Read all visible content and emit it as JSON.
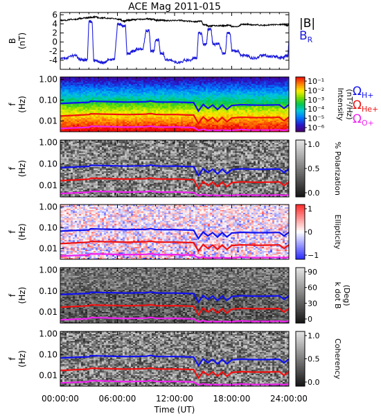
{
  "title": "ACE Mag 2011-015",
  "xlabel": "Time (UT)",
  "xticks": [
    "00:00:00",
    "06:00:00",
    "12:00:00",
    "18:00:00",
    "24:00:00"
  ],
  "xtick_hours": [
    0,
    6,
    12,
    18,
    24
  ],
  "xlim_hours": [
    0,
    24
  ],
  "colors": {
    "black": "#000000",
    "br": "#1a1adc",
    "h_plus": "#1010f0",
    "he_plus": "#f01010",
    "o_plus": "#f020f0"
  },
  "legend": {
    "b_mag": "|B|",
    "b_r": "B",
    "b_r_sub": "R",
    "omega": "Ω",
    "h_plus": "H+",
    "he_plus": "He+",
    "o_plus": "O+"
  },
  "chart_data": [
    {
      "type": "line",
      "panel": "field",
      "ylabel": "B",
      "yunit": "(nT)",
      "ylim": [
        -6,
        6.5
      ],
      "yticks": [
        "6",
        "4",
        "2",
        "0",
        "-2",
        "-4"
      ],
      "ytick_values": [
        6,
        4,
        2,
        0,
        -2,
        -4
      ],
      "x_hours": [
        0,
        1,
        2,
        2.5,
        3,
        3.5,
        4,
        5,
        6,
        6.5,
        7,
        7.5,
        8,
        9,
        9.5,
        10,
        10.5,
        11,
        12,
        13,
        14,
        14.5,
        15,
        15.5,
        16,
        17,
        17.5,
        18,
        19,
        20,
        21,
        22,
        23,
        23.7,
        24
      ],
      "series": [
        {
          "name": "|B|",
          "values": [
            4.8,
            5.0,
            5.2,
            5.3,
            5.4,
            5.5,
            5.3,
            5.2,
            5.0,
            4.6,
            4.8,
            4.9,
            5.0,
            5.1,
            5.0,
            4.8,
            4.8,
            4.7,
            4.8,
            4.6,
            4.5,
            4.6,
            3.8,
            3.5,
            3.6,
            3.6,
            3.7,
            3.4,
            3.9,
            3.8,
            3.7,
            3.8,
            3.9,
            3.7,
            4.0
          ]
        },
        {
          "name": "B_R",
          "values": [
            -3.5,
            -3.0,
            -3.8,
            -3.9,
            4.5,
            -4.0,
            -4.5,
            -3.8,
            3.9,
            3.5,
            -2.5,
            -2.0,
            -1.5,
            2.5,
            -2.0,
            0.5,
            -2.5,
            -4.0,
            -4.5,
            -4.0,
            -3.5,
            2.0,
            -0.5,
            2.8,
            -0.5,
            -2.5,
            2.0,
            -2.0,
            -3.0,
            -3.5,
            -3.0,
            -3.2,
            -3.5,
            -3.0,
            0.5
          ]
        }
      ]
    },
    {
      "type": "heatmap",
      "panel": "spectrogram",
      "ylabel": "f",
      "yunit": "(Hz)",
      "yscale": "log",
      "ylim": [
        0.003,
        1.3
      ],
      "yticks": [
        "1.00",
        "0.10",
        "0.01"
      ],
      "ytick_values": [
        1,
        0.1,
        0.01
      ],
      "colorbar_label": "Intensity",
      "colorbar_unit": "(nT²/Hz)",
      "colorbar_ticks": [
        "10⁻¹",
        "10⁻²",
        "10⁻³",
        "10⁻⁴",
        "10⁻⁵",
        "10⁻⁶"
      ],
      "colorscale": "rainbow",
      "zlim": [
        -6.5,
        -0.5
      ]
    },
    {
      "type": "heatmap",
      "panel": "polarization",
      "ylabel": "f",
      "yunit": "(Hz)",
      "yscale": "log",
      "ylim": [
        0.003,
        1.3
      ],
      "yticks": [
        "1.00",
        "0.10",
        "0.01"
      ],
      "ytick_values": [
        1,
        0.1,
        0.01
      ],
      "colorbar_label": "% Polarization",
      "colorbar_ticks": [
        "1.0",
        "0.5",
        "0.0"
      ],
      "colorscale": "gray",
      "zlim": [
        0,
        1
      ]
    },
    {
      "type": "heatmap",
      "panel": "ellipticity",
      "ylabel": "f",
      "yunit": "(Hz)",
      "yscale": "log",
      "ylim": [
        0.003,
        1.3
      ],
      "yticks": [
        "1.00",
        "0.10",
        "0.01"
      ],
      "ytick_values": [
        1,
        0.1,
        0.01
      ],
      "colorbar_label": "Ellipticity",
      "colorbar_ticks": [
        "1",
        "0",
        "−1"
      ],
      "colorscale": "blue-white-red",
      "zlim": [
        -1,
        1
      ]
    },
    {
      "type": "heatmap",
      "panel": "kdotb",
      "ylabel": "f",
      "yunit": "(Hz)",
      "yscale": "log",
      "ylim": [
        0.003,
        1.3
      ],
      "yticks": [
        "1.00",
        "0.10",
        "0.01"
      ],
      "ytick_values": [
        1,
        0.1,
        0.01
      ],
      "colorbar_label": "k dot B",
      "colorbar_unit": "(Deg)",
      "colorbar_ticks": [
        "90",
        "60",
        "30",
        "0"
      ],
      "colorscale": "gray",
      "zlim": [
        0,
        90
      ]
    },
    {
      "type": "heatmap",
      "panel": "coherency",
      "ylabel": "f",
      "yunit": "(Hz)",
      "yscale": "log",
      "ylim": [
        0.003,
        1.3
      ],
      "yticks": [
        "1.00",
        "0.10",
        "0.01"
      ],
      "ytick_values": [
        1,
        0.1,
        0.01
      ],
      "colorbar_label": "Coherency",
      "colorbar_ticks": [
        "1.0",
        "0.5",
        "0.0"
      ],
      "colorscale": "gray",
      "zlim": [
        0,
        1
      ]
    }
  ],
  "gyrofrequency_lines": {
    "x_hours": [
      0,
      1,
      2,
      3,
      3.2,
      4,
      5,
      6,
      7,
      8,
      9,
      9.5,
      10,
      11,
      12,
      13,
      14,
      14.5,
      15,
      15.5,
      16,
      16.5,
      17,
      17.5,
      18,
      19,
      20,
      21,
      22,
      23,
      23.5,
      24
    ],
    "h_plus_hz": [
      0.068,
      0.072,
      0.075,
      0.078,
      0.088,
      0.086,
      0.084,
      0.082,
      0.08,
      0.082,
      0.083,
      0.09,
      0.082,
      0.08,
      0.081,
      0.078,
      0.076,
      0.03,
      0.062,
      0.04,
      0.058,
      0.035,
      0.058,
      0.036,
      0.055,
      0.06,
      0.058,
      0.057,
      0.058,
      0.059,
      0.04,
      0.06
    ],
    "he_plus_hz": [
      0.017,
      0.018,
      0.019,
      0.02,
      0.022,
      0.0215,
      0.021,
      0.0205,
      0.02,
      0.0205,
      0.021,
      0.0225,
      0.0205,
      0.02,
      0.0203,
      0.0195,
      0.019,
      0.0075,
      0.0155,
      0.01,
      0.0145,
      0.009,
      0.0145,
      0.009,
      0.0138,
      0.015,
      0.0145,
      0.0143,
      0.0145,
      0.0148,
      0.01,
      0.015
    ],
    "o_plus_hz": [
      0.0043,
      0.0045,
      0.0047,
      0.0049,
      0.0055,
      0.0054,
      0.0053,
      0.0051,
      0.005,
      0.0051,
      0.0052,
      0.0056,
      0.0051,
      0.005,
      0.0051,
      0.0049,
      0.0048,
      0.0035,
      0.0039,
      0.0035,
      0.0036,
      0.0035,
      0.0036,
      0.0035,
      0.0035,
      0.0038,
      0.0036,
      0.0036,
      0.0036,
      0.0037,
      0.0035,
      0.0038
    ]
  }
}
